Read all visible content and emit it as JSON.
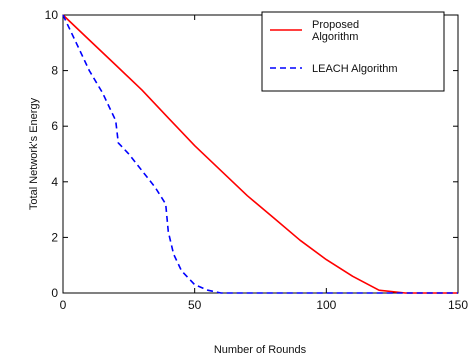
{
  "chart_data": {
    "type": "line",
    "xlabel": "Number of Rounds",
    "ylabel": "Total Network's Energy",
    "xlim": [
      0,
      150
    ],
    "ylim": [
      0,
      10
    ],
    "xticks": [
      0,
      50,
      100,
      150
    ],
    "yticks": [
      0,
      2,
      4,
      6,
      8,
      10
    ],
    "grid": false,
    "legend_position": "top-right",
    "series": [
      {
        "name": "Proposed Algorithm",
        "legend_lines": [
          "Proposed",
          "Algorithm"
        ],
        "color": "#ff0000",
        "dash": "solid",
        "points": [
          [
            0,
            10
          ],
          [
            10,
            9.1
          ],
          [
            20,
            8.2
          ],
          [
            30,
            7.3
          ],
          [
            40,
            6.3
          ],
          [
            50,
            5.3
          ],
          [
            60,
            4.4
          ],
          [
            70,
            3.5
          ],
          [
            80,
            2.7
          ],
          [
            90,
            1.9
          ],
          [
            100,
            1.2
          ],
          [
            110,
            0.6
          ],
          [
            120,
            0.1
          ],
          [
            130,
            0
          ],
          [
            150,
            0
          ]
        ]
      },
      {
        "name": "LEACH Algorithm",
        "legend_lines": [
          "LEACH Algorithm"
        ],
        "color": "#0000ff",
        "dash": "dashed",
        "points": [
          [
            0,
            10
          ],
          [
            5,
            9
          ],
          [
            10,
            8
          ],
          [
            15,
            7.2
          ],
          [
            20,
            6.2
          ],
          [
            21,
            5.4
          ],
          [
            25,
            5
          ],
          [
            30,
            4.4
          ],
          [
            35,
            3.8
          ],
          [
            39,
            3.2
          ],
          [
            40,
            2.2
          ],
          [
            42,
            1.4
          ],
          [
            45,
            0.8
          ],
          [
            50,
            0.3
          ],
          [
            55,
            0.1
          ],
          [
            60,
            0
          ],
          [
            150,
            0
          ]
        ]
      }
    ]
  }
}
